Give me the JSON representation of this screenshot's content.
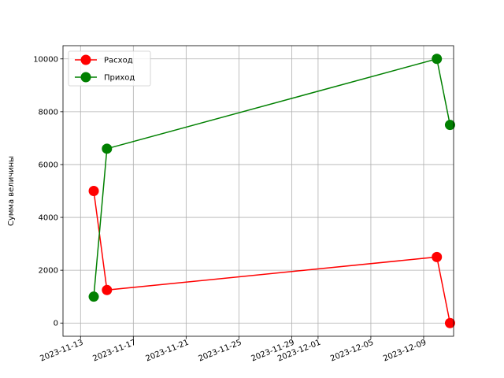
{
  "chart_data": {
    "type": "line",
    "title": "",
    "xlabel": "",
    "ylabel": "Сумма величины",
    "x_type": "date",
    "xlim": [
      "2023-11-12",
      "2023-12-11"
    ],
    "ylim": [
      -500,
      10500
    ],
    "x_ticks": [
      "2023-11-13",
      "2023-11-17",
      "2023-11-21",
      "2023-11-25",
      "2023-11-29",
      "2023-12-01",
      "2023-12-05",
      "2023-12-09"
    ],
    "y_ticks": [
      0,
      2000,
      4000,
      6000,
      8000,
      10000
    ],
    "grid": true,
    "legend_position": "top-left",
    "series": [
      {
        "name": "Расход",
        "color": "#ff0000",
        "marker": "circle",
        "points": [
          {
            "x": "2023-11-14",
            "y": 5000
          },
          {
            "x": "2023-11-15",
            "y": 1250
          },
          {
            "x": "2023-12-10",
            "y": 2500
          },
          {
            "x": "2023-12-11",
            "y": 0
          }
        ]
      },
      {
        "name": "Приход",
        "color": "#008000",
        "marker": "circle",
        "points": [
          {
            "x": "2023-11-14",
            "y": 1000
          },
          {
            "x": "2023-11-15",
            "y": 6600
          },
          {
            "x": "2023-12-10",
            "y": 10000
          },
          {
            "x": "2023-12-11",
            "y": 7500
          }
        ]
      }
    ]
  }
}
